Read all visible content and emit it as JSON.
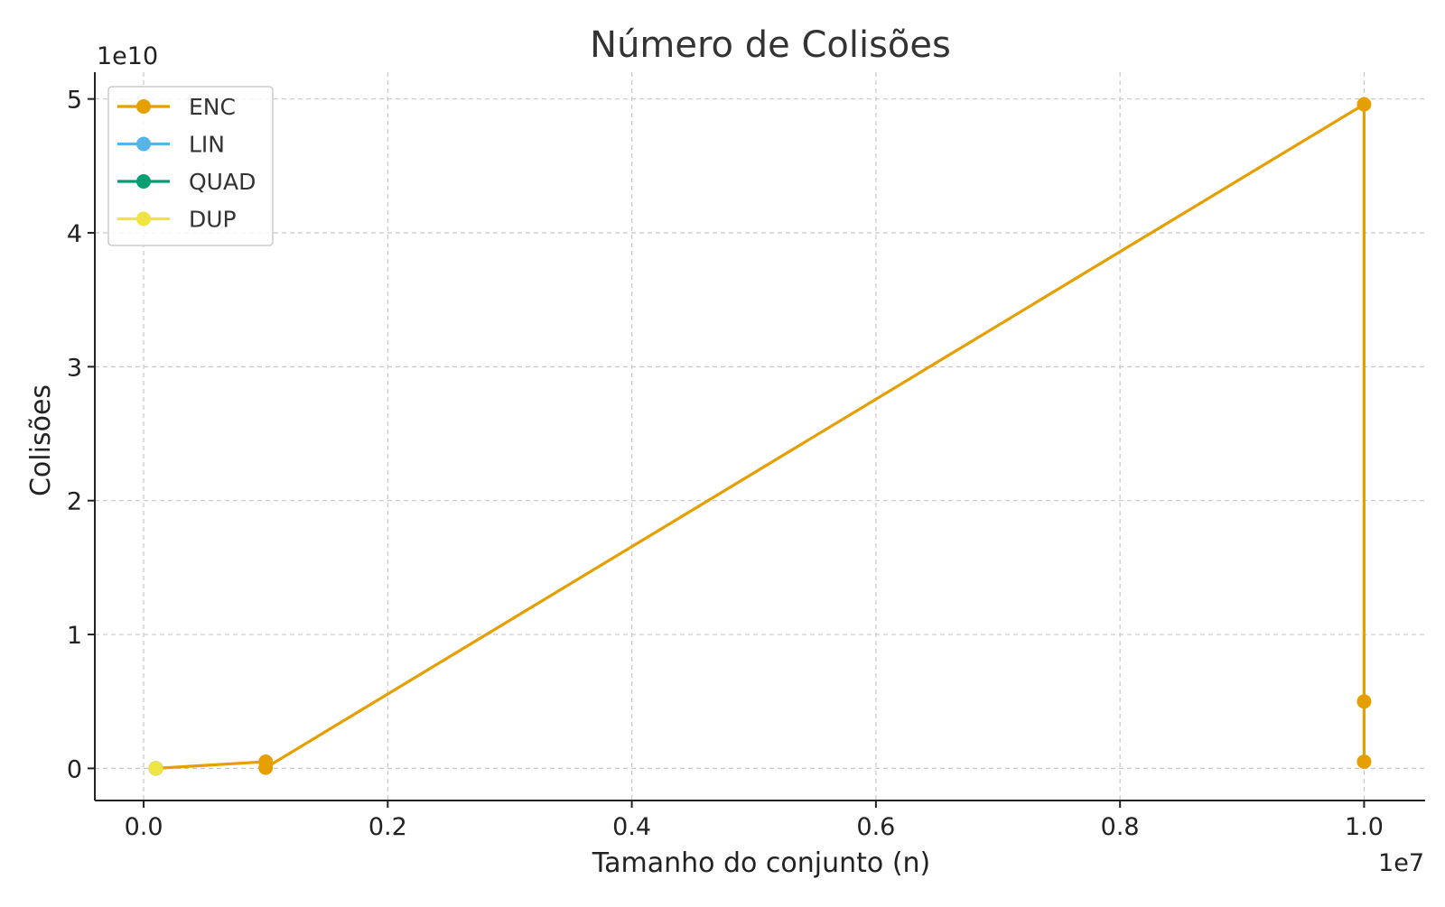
{
  "chart_data": {
    "type": "line",
    "title": "Número de Colisões",
    "xlabel": "Tamanho do conjunto (n)",
    "ylabel": "Colisões",
    "x_offset_label": "1e7",
    "y_offset_label": "1e10",
    "xlim": [
      -0.04,
      1.05
    ],
    "ylim": [
      -0.24,
      5.2
    ],
    "x_scale_factor": 10000000,
    "y_scale_factor": 10000000000,
    "x_ticks": [
      0.0,
      0.2,
      0.4,
      0.6,
      0.8,
      1.0
    ],
    "x_tick_labels": [
      "0.0",
      "0.2",
      "0.4",
      "0.6",
      "0.8",
      "1.0"
    ],
    "y_ticks": [
      0,
      1,
      2,
      3,
      4,
      5
    ],
    "y_tick_labels": [
      "0",
      "1",
      "2",
      "3",
      "4",
      "5"
    ],
    "grid": true,
    "legend_position": "top-left",
    "series": [
      {
        "name": "ENC",
        "color": "#E69F00",
        "x": [
          0.01,
          0.1,
          0.1,
          1.0,
          1.0,
          1.0
        ],
        "y": [
          0.0,
          0.05,
          0.005,
          4.96,
          0.5,
          0.05
        ]
      },
      {
        "name": "LIN",
        "color": "#56B4E9",
        "x": [
          0.01
        ],
        "y": [
          0.0
        ]
      },
      {
        "name": "QUAD",
        "color": "#009E73",
        "x": [
          0.01
        ],
        "y": [
          0.0
        ]
      },
      {
        "name": "DUP",
        "color": "#F0E442",
        "x": [
          0.01
        ],
        "y": [
          0.0
        ]
      }
    ]
  }
}
